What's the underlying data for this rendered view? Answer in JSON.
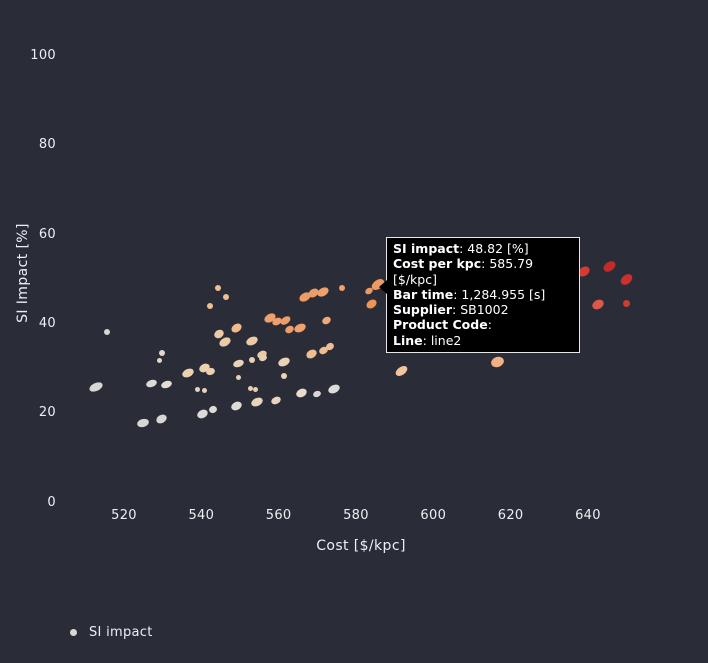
{
  "app": {
    "background": "#2a2d38",
    "text_color": "#eceff1"
  },
  "legend": {
    "label": "SI impact",
    "marker_color": "#d9d8d6",
    "position": "bottom-left"
  },
  "tooltip": {
    "background": "#000000",
    "border_color": "#e8e8e8",
    "rows": [
      {
        "label": "SI impact",
        "value": "48.82 [%]"
      },
      {
        "label": "Cost per kpc",
        "value": "585.79 [$/kpc]"
      },
      {
        "label": "Bar time",
        "value": "1,284.955 [s]"
      },
      {
        "label": "Supplier",
        "value": "SB1002"
      },
      {
        "label": "Product Code",
        "value": ""
      },
      {
        "label": "Line",
        "value": "line2"
      }
    ]
  },
  "chart_data": {
    "type": "scatter",
    "title": "",
    "xlabel": "Cost [$/kpc]",
    "ylabel": "SI Impact [%]",
    "xlim": [
      505,
      669.5
    ],
    "ylim": [
      -1.6,
      110.3
    ],
    "x_ticks": [
      520,
      540,
      560,
      580,
      600,
      620,
      640
    ],
    "y_ticks": [
      0,
      20,
      40,
      60,
      80,
      100
    ],
    "grid": false,
    "legend_position": "bottom-left",
    "series_name": "SI impact",
    "hovered_point": {
      "cost": 585.79,
      "si": 48.82,
      "bar_time": "1,284.955",
      "supplier": "SB1002",
      "product_code": "",
      "line": "line2"
    },
    "points_format": [
      "cost",
      "si_impact",
      "color",
      "marker_w",
      "marker_h",
      "rotation_deg"
    ],
    "points": [
      [
        515.6,
        38.3,
        "#d8d7d5",
        6,
        6,
        0
      ],
      [
        512.8,
        25.9,
        "#d8d7d5",
        14,
        8,
        -25
      ],
      [
        527.0,
        26.6,
        "#dbdad8",
        11,
        7,
        -20
      ],
      [
        530.9,
        26.4,
        "#e6ddd1",
        11,
        7,
        -20
      ],
      [
        524.9,
        17.9,
        "#d8d7d5",
        12,
        8,
        -15
      ],
      [
        529.8,
        18.8,
        "#d8d7d5",
        11,
        8,
        -30
      ],
      [
        540.2,
        19.9,
        "#dcdbd9",
        11,
        8,
        -25
      ],
      [
        543.0,
        21.0,
        "#dcdbd9",
        8,
        7,
        -20
      ],
      [
        549.2,
        21.7,
        "#dedcd8",
        11,
        8,
        -25
      ],
      [
        554.4,
        22.6,
        "#e9d5bd",
        12,
        8,
        -25
      ],
      [
        559.3,
        23.0,
        "#e9d5bd",
        10,
        7,
        -25
      ],
      [
        566.0,
        24.6,
        "#e9dccb",
        11,
        8,
        -25
      ],
      [
        574.3,
        25.5,
        "#dcdbd9",
        12,
        8,
        -25
      ],
      [
        569.9,
        24.4,
        "#d8d7d5",
        8,
        6,
        -20
      ],
      [
        591.9,
        29.5,
        "#f2c59e",
        13,
        8,
        -35
      ],
      [
        529.8,
        33.6,
        "#e4d7c7",
        6,
        6,
        0
      ],
      [
        529.3,
        31.8,
        "#e4d7c7",
        5,
        5,
        0
      ],
      [
        536.6,
        29.1,
        "#ecd0b0",
        12,
        8,
        -25
      ],
      [
        540.7,
        30.2,
        "#ecd0b0",
        11,
        8,
        -25
      ],
      [
        542.5,
        29.3,
        "#ecd0b0",
        9,
        7,
        -20
      ],
      [
        539.1,
        25.3,
        "#e7d2ba",
        5,
        5,
        0
      ],
      [
        540.9,
        25.1,
        "#e7d2ba",
        5,
        5,
        0
      ],
      [
        544.3,
        48.1,
        "#f0bd94",
        6,
        6,
        0
      ],
      [
        546.4,
        46.1,
        "#f0bd94",
        6,
        6,
        0
      ],
      [
        542.2,
        44.1,
        "#f0bd94",
        6,
        6,
        0
      ],
      [
        544.6,
        37.8,
        "#eec9a6",
        10,
        8,
        -30
      ],
      [
        546.1,
        36.0,
        "#eec9a6",
        12,
        8,
        -30
      ],
      [
        549.0,
        39.1,
        "#f0ba8c",
        11,
        8,
        -35
      ],
      [
        553.1,
        36.2,
        "#eec9a6",
        12,
        8,
        -25
      ],
      [
        555.7,
        33.1,
        "#ecc9a4",
        10,
        7,
        -25
      ],
      [
        549.5,
        31.1,
        "#e8d3ba",
        11,
        7,
        -20
      ],
      [
        552.6,
        25.5,
        "#e9d0b0",
        5,
        5,
        0
      ],
      [
        554.1,
        25.3,
        "#e9d0b0",
        5,
        5,
        0
      ],
      [
        557.8,
        41.4,
        "#ee9f6b",
        12,
        8,
        -30
      ],
      [
        559.6,
        40.5,
        "#ee9f6b",
        10,
        7,
        -30
      ],
      [
        561.4,
        31.5,
        "#ecd2b6",
        12,
        8,
        -25
      ],
      [
        553.1,
        32.0,
        "#ead0b2",
        6,
        6,
        0
      ],
      [
        556.0,
        32.4,
        "#ead0b2",
        8,
        6,
        -20
      ],
      [
        549.5,
        28.0,
        "#e8d0b4",
        5,
        5,
        0
      ],
      [
        561.4,
        28.4,
        "#ecd2b6",
        6,
        6,
        0
      ],
      [
        566.8,
        46.1,
        "#ed9c66",
        12,
        8,
        -30
      ],
      [
        569.1,
        47.0,
        "#ed9c66",
        11,
        8,
        -35
      ],
      [
        571.5,
        47.2,
        "#efa06c",
        12,
        8,
        -30
      ],
      [
        576.4,
        48.1,
        "#efa06c",
        6,
        6,
        0
      ],
      [
        561.9,
        40.7,
        "#ee9d68",
        11,
        7,
        -35
      ],
      [
        562.9,
        38.7,
        "#ee9d68",
        9,
        7,
        -30
      ],
      [
        565.5,
        39.1,
        "#eda26f",
        12,
        8,
        -25
      ],
      [
        572.5,
        40.9,
        "#f0a877",
        9,
        7,
        -30
      ],
      [
        568.6,
        33.3,
        "#f0bd92",
        11,
        8,
        -30
      ],
      [
        571.5,
        34.2,
        "#f0bd92",
        9,
        7,
        -25
      ],
      [
        573.3,
        34.9,
        "#f0bd92",
        8,
        7,
        -25
      ],
      [
        590.3,
        35.6,
        "#e9d3bd",
        5,
        5,
        0
      ],
      [
        592.2,
        34.4,
        "#e9d3bd",
        5,
        5,
        0
      ],
      [
        585.79,
        48.82,
        "#ec9a62",
        14,
        9,
        -35
      ],
      [
        584.1,
        44.5,
        "#ed9555",
        11,
        8,
        -35
      ],
      [
        583.4,
        47.4,
        "#ec9a62",
        8,
        6,
        -30
      ],
      [
        602.5,
        37.4,
        "#f0995e",
        12,
        9,
        -30
      ],
      [
        616.7,
        31.5,
        "#f5b183",
        13,
        10,
        -20
      ],
      [
        639.0,
        51.7,
        "#d73a33",
        12,
        9,
        -35
      ],
      [
        645.7,
        53.0,
        "#c32b2a",
        13,
        9,
        -35
      ],
      [
        650.1,
        49.9,
        "#cc302d",
        13,
        9,
        -40
      ],
      [
        642.6,
        44.3,
        "#dc5848",
        12,
        9,
        -30
      ],
      [
        650.1,
        44.7,
        "#cf3a33",
        7,
        7,
        0
      ]
    ]
  }
}
